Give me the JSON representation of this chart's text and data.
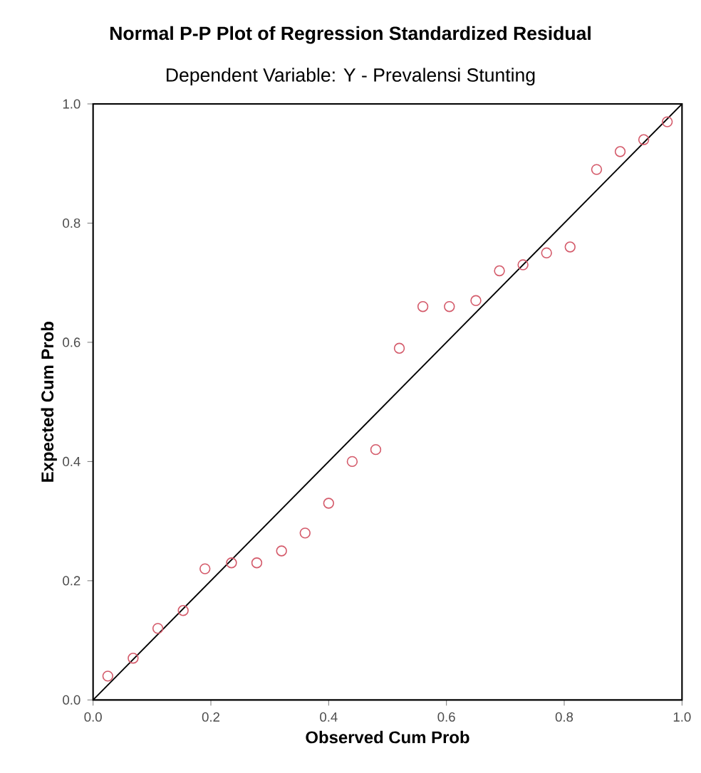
{
  "chart_data": {
    "type": "scatter",
    "title": "Normal P-P Plot of Regression Standardized Residual",
    "subtitle": "Dependent Variable: Y - Prevalensi Stunting",
    "xlabel": "Observed Cum Prob",
    "ylabel": "Expected Cum Prob",
    "series": [
      {
        "color": "#d45a6a",
        "marker": "circle",
        "x": [
          0.025,
          0.068,
          0.11,
          0.153,
          0.19,
          0.235,
          0.278,
          0.32,
          0.36,
          0.4,
          0.44,
          0.48,
          0.52,
          0.56,
          0.605,
          0.65,
          0.69,
          0.73,
          0.77,
          0.81,
          0.855,
          0.895,
          0.935,
          0.975
        ],
        "values": [
          0.04,
          0.07,
          0.12,
          0.15,
          0.22,
          0.23,
          0.23,
          0.25,
          0.28,
          0.33,
          0.4,
          0.42,
          0.59,
          0.66,
          0.66,
          0.67,
          0.72,
          0.73,
          0.75,
          0.76,
          0.89,
          0.92,
          0.94,
          0.97
        ]
      },
      {
        "type": "line",
        "color": "#000000",
        "marker": "none",
        "x": [
          0,
          1
        ],
        "values": [
          0,
          1
        ]
      }
    ],
    "xlim": [
      0,
      1
    ],
    "ylim": [
      0,
      1
    ],
    "xticks": [
      {
        "value": 0,
        "label": "0.0"
      },
      {
        "value": 0.2,
        "label": "0.2"
      },
      {
        "value": 0.4,
        "label": "0.4"
      },
      {
        "value": 0.6,
        "label": "0.6"
      },
      {
        "value": 0.8,
        "label": "0.8"
      },
      {
        "value": 1,
        "label": "1.0"
      }
    ],
    "yticks": [
      {
        "value": 0,
        "label": "0.0"
      },
      {
        "value": 0.2,
        "label": "0.2"
      },
      {
        "value": 0.4,
        "label": "0.4"
      },
      {
        "value": 0.6,
        "label": "0.6"
      },
      {
        "value": 0.8,
        "label": "0.8"
      },
      {
        "value": 1,
        "label": "1.0"
      }
    ],
    "grid": false
  }
}
